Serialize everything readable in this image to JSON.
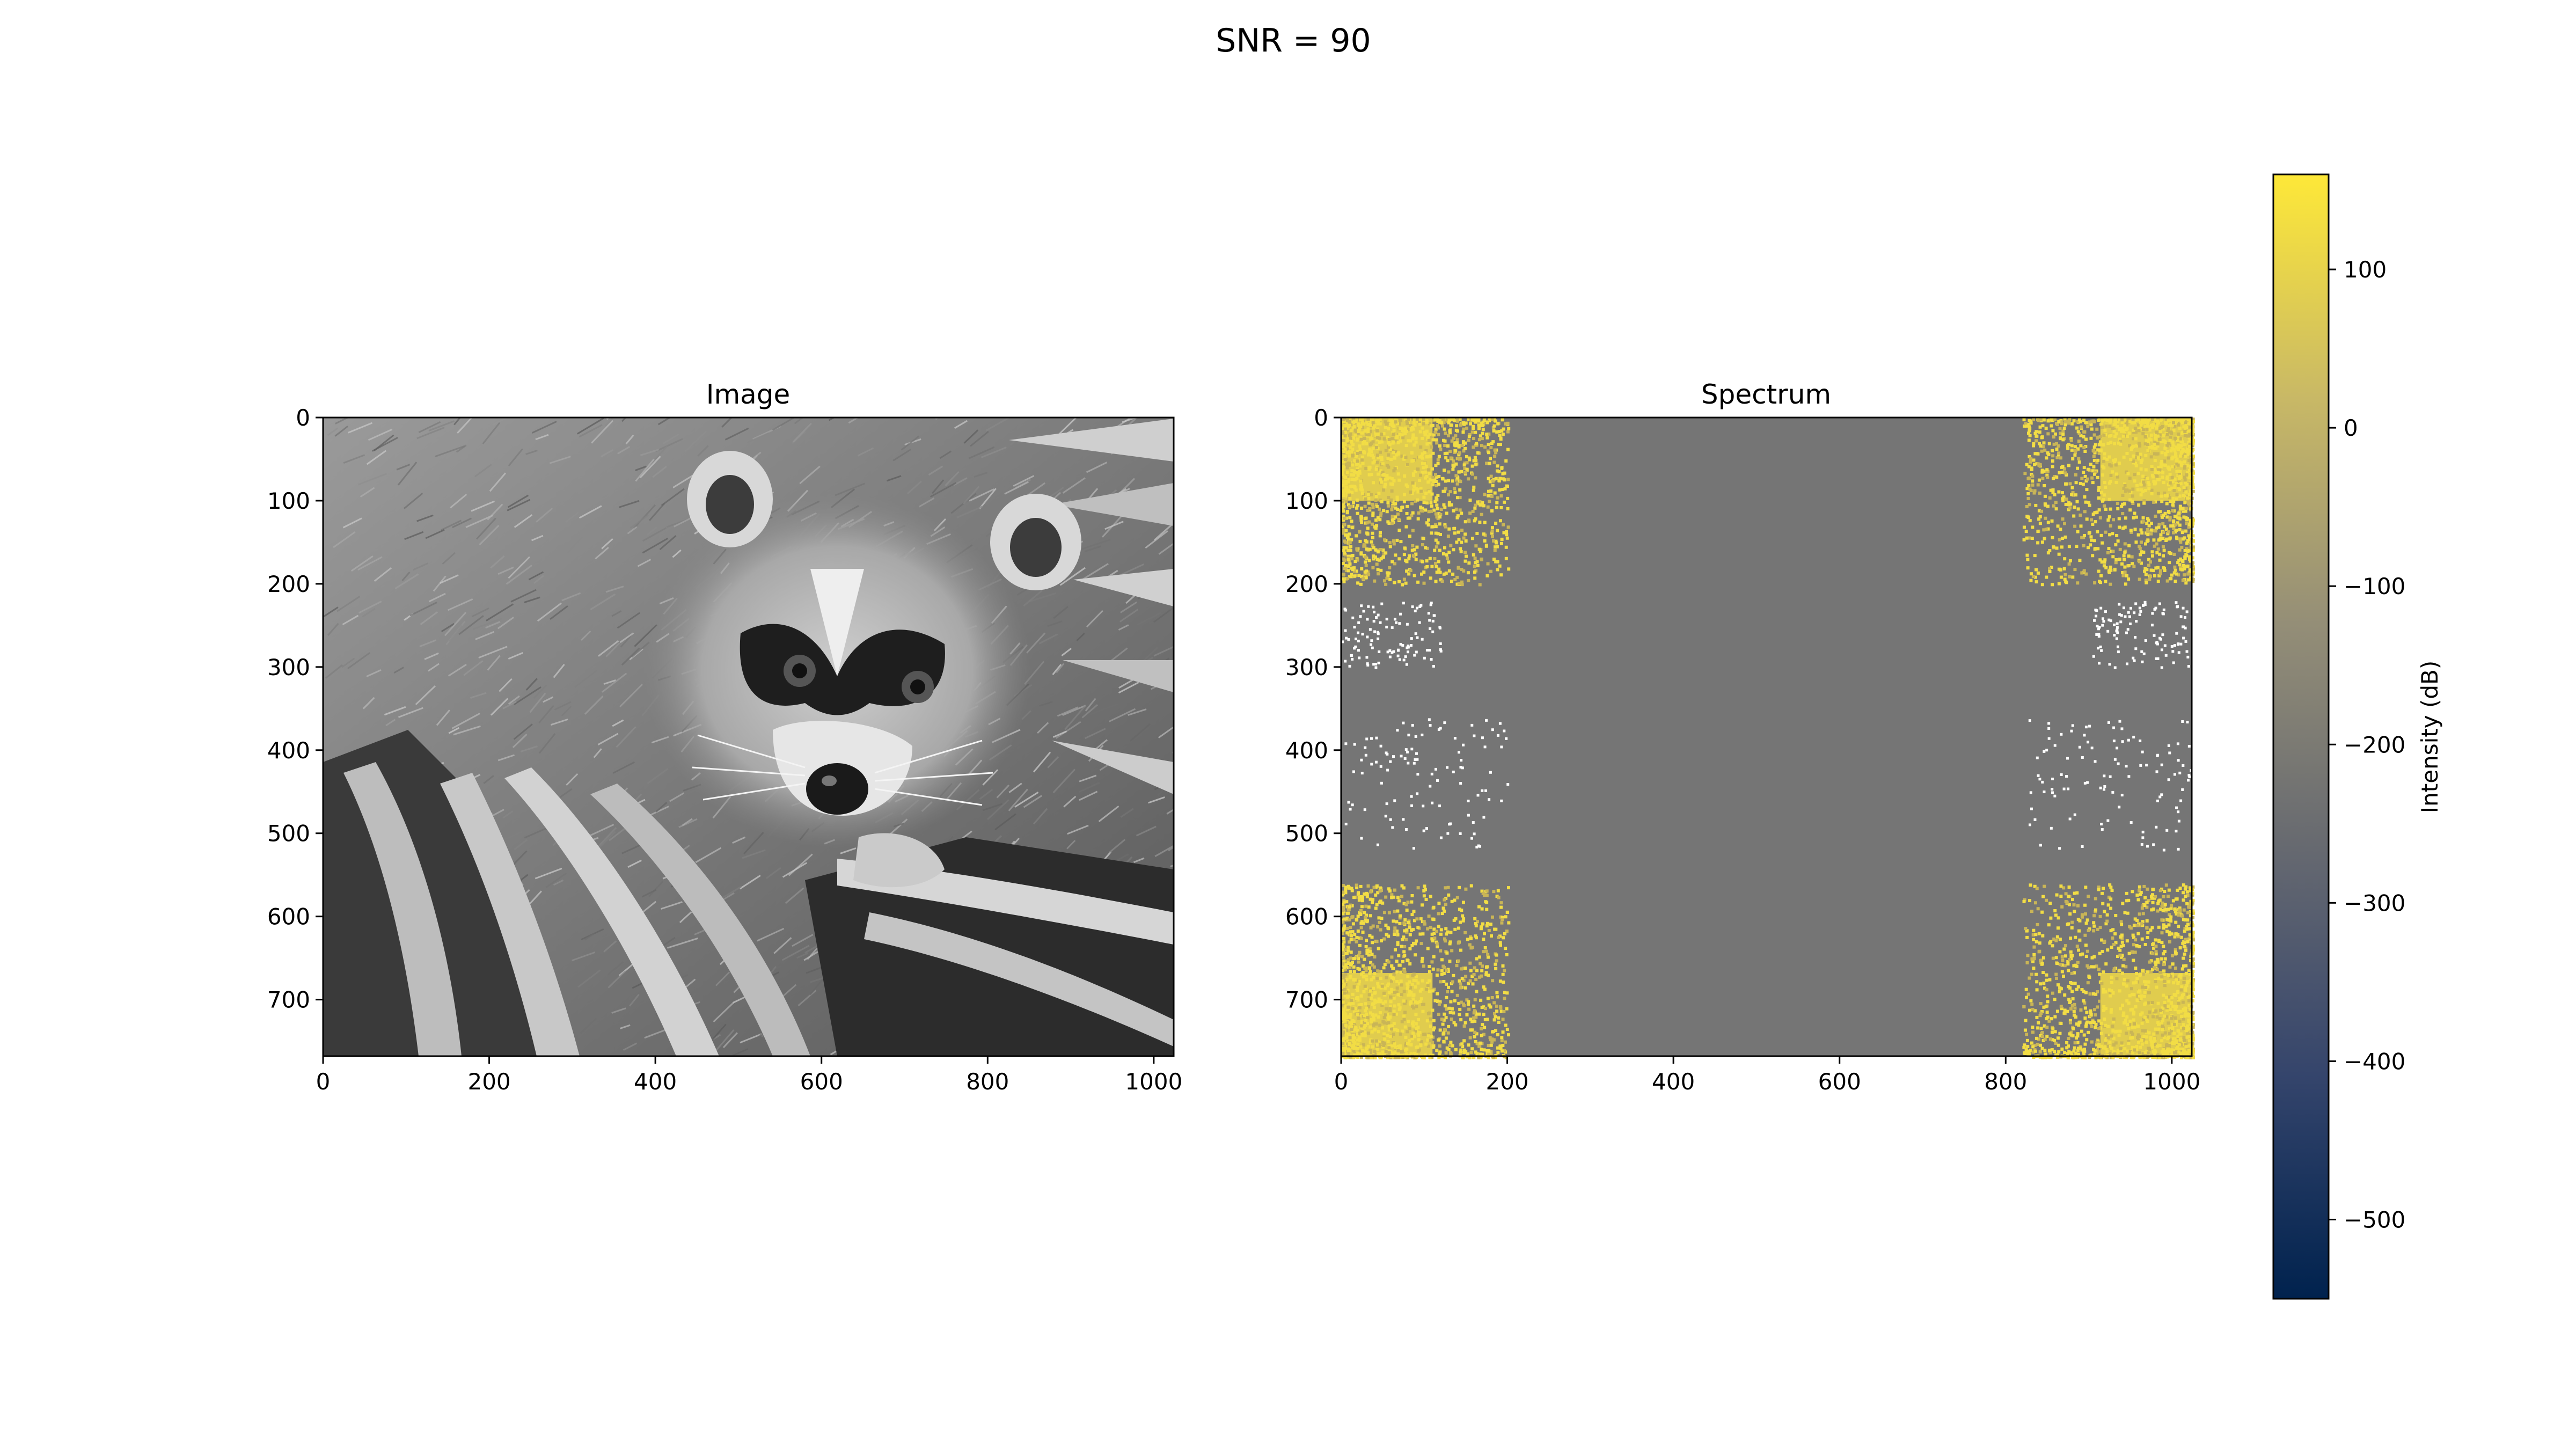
{
  "figure": {
    "suptitle": "SNR = 90"
  },
  "chart_data": [
    {
      "type": "heatmap",
      "title": "Image",
      "colormap": "gray",
      "xlim": [
        0,
        1024
      ],
      "ylim": [
        768,
        0
      ],
      "xticks": [
        0,
        200,
        400,
        600,
        800,
        1000
      ],
      "yticks": [
        0,
        100,
        200,
        300,
        400,
        500,
        600,
        700
      ],
      "image_content": "raccoon face (grayscale photograph)"
    },
    {
      "type": "heatmap",
      "title": "Spectrum",
      "colormap": "cividis",
      "xlim": [
        0,
        1024
      ],
      "ylim": [
        768,
        0
      ],
      "xticks": [
        0,
        200,
        400,
        600,
        800,
        1000
      ],
      "yticks": [
        0,
        100,
        200,
        300,
        400,
        500,
        600,
        700
      ],
      "background_value_db": -160,
      "bright_value_db": 150,
      "high_intensity_regions": [
        {
          "x": [
            0,
            200
          ],
          "y": [
            0,
            200
          ]
        },
        {
          "x": [
            820,
            1024
          ],
          "y": [
            0,
            200
          ]
        },
        {
          "x": [
            0,
            200
          ],
          "y": [
            560,
            768
          ]
        },
        {
          "x": [
            820,
            1024
          ],
          "y": [
            560,
            768
          ]
        }
      ]
    }
  ],
  "colorbar": {
    "label": "Intensity (dB)",
    "range": [
      -550,
      160
    ],
    "ticks": [
      100,
      0,
      -100,
      -200,
      -300,
      -400,
      -500
    ],
    "colors": [
      "#00224e",
      "#35456c",
      "#666970",
      "#948e77",
      "#c8b866",
      "#fee838"
    ]
  }
}
